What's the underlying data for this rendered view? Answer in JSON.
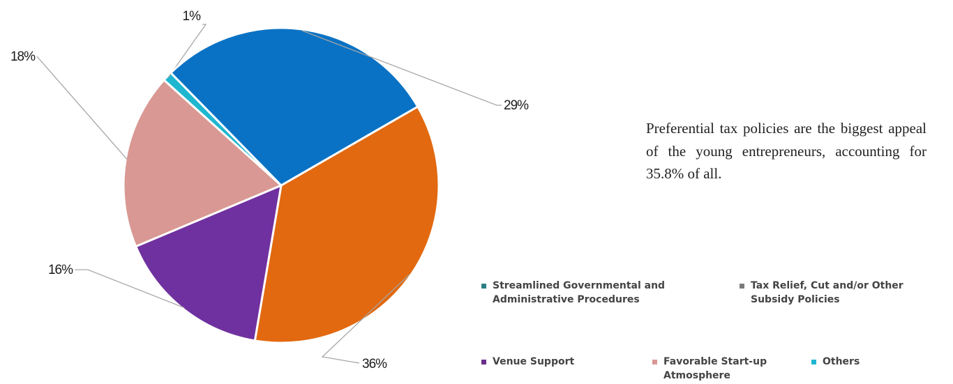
{
  "chart_data": {
    "type": "pie",
    "series": [
      {
        "name": "Tax Relief, Cut and/or Other Subsidy Policies",
        "value": 36,
        "label": "36%",
        "color": "#e2690f"
      },
      {
        "name": "Venue Support",
        "value": 16,
        "label": "16%",
        "color": "#7031a0"
      },
      {
        "name": "Favorable Start-up Atmosphere",
        "value": 18,
        "label": "18%",
        "color": "#d99893"
      },
      {
        "name": "Others",
        "value": 1,
        "label": "1%",
        "color": "#1fb6d0"
      },
      {
        "name": "Streamlined Governmental and Administrative Procedures",
        "value": 29,
        "label": "29%",
        "color": "#0a72c4"
      }
    ],
    "legend": [
      {
        "text": "Streamlined Governmental and\nAdministrative Procedures",
        "color": "#2a7f86"
      },
      {
        "text": "Tax Relief, Cut and/or Other\nSubsidy Policies",
        "color": "#7a7a7a"
      },
      {
        "text": "Venue Support",
        "color": "#6a2f8c"
      },
      {
        "text": "Favorable Start-up\nAtmosphere",
        "color": "#d99893"
      },
      {
        "text": "Others",
        "color": "#1fb6d0"
      }
    ]
  },
  "caption": "Preferential tax policies are the biggest appeal of the young entrepreneurs, accounting for 35.8% of all."
}
